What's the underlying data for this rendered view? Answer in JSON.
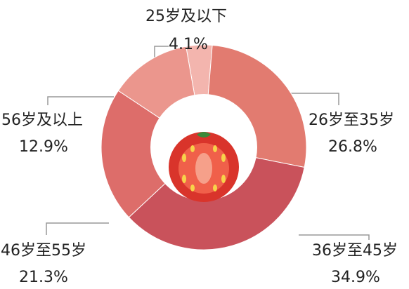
{
  "chart_data": {
    "type": "donut",
    "categories": [
      "25岁及以下",
      "26岁至35岁",
      "36岁至45岁",
      "46岁至55岁",
      "56岁及以上"
    ],
    "values": [
      4.1,
      26.8,
      34.9,
      21.3,
      12.9
    ],
    "value_labels": [
      "4.1%",
      "26.8%",
      "34.9%",
      "21.3%",
      "12.9%"
    ],
    "colors": [
      "#f3b5ae",
      "#e27b70",
      "#c9525b",
      "#dd6d6a",
      "#eb968d"
    ]
  }
}
